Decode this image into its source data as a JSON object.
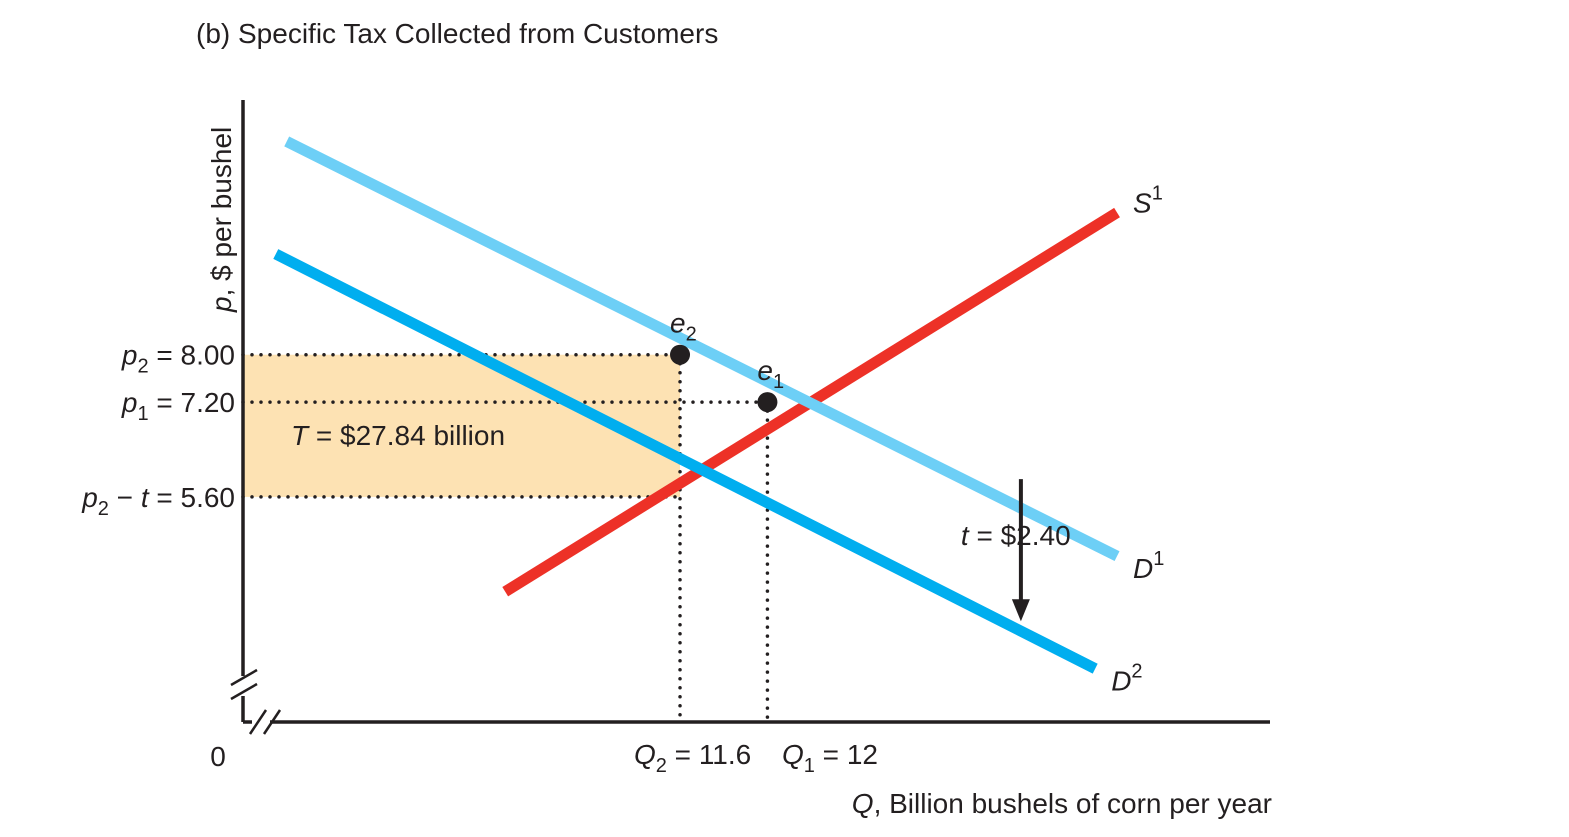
{
  "chart_data": {
    "type": "line",
    "title": "(b) Specific Tax Collected from Customers",
    "xlabel": {
      "var": "Q",
      "text": ", Billion bushels of corn per year"
    },
    "ylabel": {
      "var": "p",
      "text": ", $ per bushel"
    },
    "origin_label": "0",
    "colors": {
      "supply": "#ed3127",
      "demand_original": "#6dcff6",
      "demand_shifted": "#00aeef",
      "tax_area": "#fde2b3",
      "dot": "#231f20"
    },
    "series": [
      {
        "id": "S1",
        "name": "S",
        "sup": "1",
        "points": [
          [
            10.8,
            4.0
          ],
          [
            13.6,
            10.4
          ]
        ]
      },
      {
        "id": "D1",
        "name": "D",
        "sup": "1",
        "points": [
          [
            9.8,
            11.6
          ],
          [
            13.6,
            4.6
          ]
        ]
      },
      {
        "id": "D2",
        "name": "D",
        "sup": "2",
        "points": [
          [
            9.75,
            9.7
          ],
          [
            13.5,
            2.7
          ]
        ]
      }
    ],
    "equilibria": [
      {
        "name": "e",
        "sub": "2",
        "x": 11.6,
        "y": 8.0
      },
      {
        "name": "e",
        "sub": "1",
        "x": 12.0,
        "y": 7.2
      }
    ],
    "y_ticks": [
      {
        "value": 8.0,
        "var": "p",
        "sub": "2",
        "text": " = 8.00"
      },
      {
        "value": 7.2,
        "var": "p",
        "sub": "1",
        "text": " = 7.20"
      },
      {
        "value": 5.6,
        "var": "p",
        "sub": "2",
        "mid": " − ",
        "var2": "t",
        "text": " = 5.60"
      }
    ],
    "x_ticks": [
      {
        "value": 11.6,
        "var": "Q",
        "sub": "2",
        "text": " = 11.6"
      },
      {
        "value": 12.0,
        "var": "Q",
        "sub": "1",
        "text": " = 12"
      }
    ],
    "tax_area": {
      "x0": 9.6,
      "x1": 11.6,
      "y0": 5.6,
      "y1": 8.0,
      "label_var": "T",
      "label_text": " = $27.84 billion"
    },
    "tax_arrow": {
      "x": 13.16,
      "y_from": 5.9,
      "y_to": 3.5,
      "label_var": "t",
      "label_text": " = $2.40"
    },
    "xlim": [
      9.6,
      14.3
    ],
    "ylim": [
      1.8,
      12.3
    ]
  }
}
